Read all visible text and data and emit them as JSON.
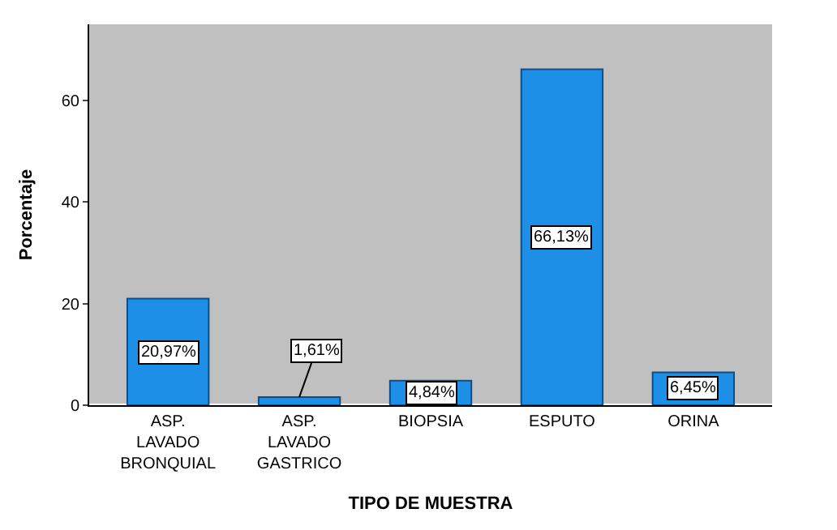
{
  "chart_data": {
    "type": "bar",
    "xlabel": "TIPO DE MUESTRA",
    "ylabel": "Porcentaje",
    "categories": [
      "ASP. LAVADO BRONQUIAL",
      "ASP. LAVADO GASTRICO",
      "BIOPSIA",
      "ESPUTO",
      "ORINA"
    ],
    "values": [
      20.97,
      1.61,
      4.84,
      66.13,
      6.45
    ],
    "value_labels": [
      "20,97%",
      "1,61%",
      "4,84%",
      "66,13%",
      "6,45%"
    ],
    "color": "#1e8fe6",
    "ylim": [
      0,
      75
    ],
    "yticks": [
      0,
      20,
      40,
      60
    ],
    "grid": false,
    "legend": false
  }
}
